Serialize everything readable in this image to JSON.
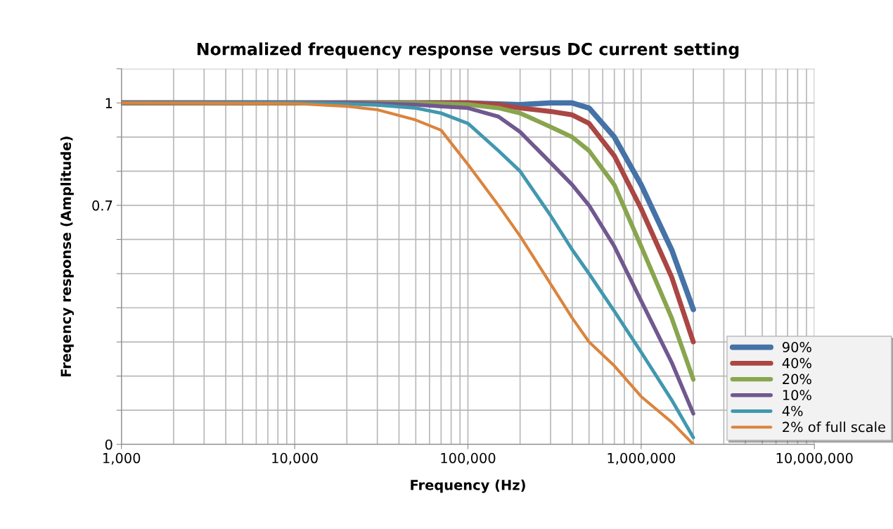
{
  "chart_data": {
    "type": "line",
    "title": "Normalized frequency response versus DC current setting",
    "xlabel": "Frequency (Hz)",
    "ylabel": "Freqency response (Amplitude)",
    "x": [
      1000,
      10000,
      20000,
      30000,
      50000,
      70000,
      100000,
      150000,
      200000,
      300000,
      400000,
      500000,
      700000,
      1000000,
      1500000,
      2000000
    ],
    "series": [
      {
        "name": "90%",
        "color": "#4572a7",
        "values": [
          1,
          1,
          1,
          1,
          1,
          1,
          1,
          0.997,
          0.995,
          1,
          1,
          0.985,
          0.9,
          0.76,
          0.57,
          0.395
        ]
      },
      {
        "name": "40%",
        "color": "#aa4643",
        "values": [
          1,
          1,
          1,
          1,
          1,
          1,
          1,
          0.995,
          0.985,
          0.975,
          0.965,
          0.94,
          0.845,
          0.69,
          0.49,
          0.3
        ]
      },
      {
        "name": "20%",
        "color": "#89a54e",
        "values": [
          1,
          1,
          1,
          1,
          1,
          0.998,
          0.995,
          0.985,
          0.97,
          0.93,
          0.9,
          0.86,
          0.76,
          0.58,
          0.37,
          0.19
        ]
      },
      {
        "name": "10%",
        "color": "#71588f",
        "values": [
          1,
          1,
          1,
          0.998,
          0.995,
          0.99,
          0.985,
          0.96,
          0.915,
          0.825,
          0.76,
          0.7,
          0.58,
          0.42,
          0.24,
          0.09
        ]
      },
      {
        "name": "4%",
        "color": "#4198af",
        "values": [
          1,
          1,
          0.997,
          0.994,
          0.985,
          0.97,
          0.94,
          0.86,
          0.8,
          0.67,
          0.57,
          0.5,
          0.39,
          0.27,
          0.13,
          0.02
        ]
      },
      {
        "name": "2% of full scale",
        "color": "#db843d",
        "values": [
          1,
          0.998,
          0.99,
          0.98,
          0.95,
          0.92,
          0.82,
          0.7,
          0.61,
          0.47,
          0.37,
          0.3,
          0.23,
          0.14,
          0.065,
          0
        ]
      }
    ],
    "log": "x",
    "xlim": [
      1000,
      10000000
    ],
    "xticks": [
      {
        "value": 1000,
        "label": "1,000"
      },
      {
        "value": 10000,
        "label": "10,000"
      },
      {
        "value": 100000,
        "label": "100,000"
      },
      {
        "value": 1000000,
        "label": "1,000,000"
      },
      {
        "value": 10000000,
        "label": "10,000,000"
      }
    ],
    "ylim": [
      0,
      1.1
    ],
    "yticks": [
      0,
      {
        "value": 0.1,
        "label": null
      },
      {
        "value": 0.2,
        "label": null
      },
      {
        "value": 0.3,
        "label": null
      },
      {
        "value": 0.4,
        "label": null
      },
      {
        "value": 0.5,
        "label": null
      },
      {
        "value": 0.6,
        "label": null
      },
      0.7,
      {
        "value": 0.8,
        "label": null
      },
      {
        "value": 0.9,
        "label": null
      },
      1,
      {
        "value": 1.1,
        "label": null
      }
    ],
    "grid": true,
    "legend": "bottom right",
    "marker": "none",
    "line_style": "solid"
  }
}
